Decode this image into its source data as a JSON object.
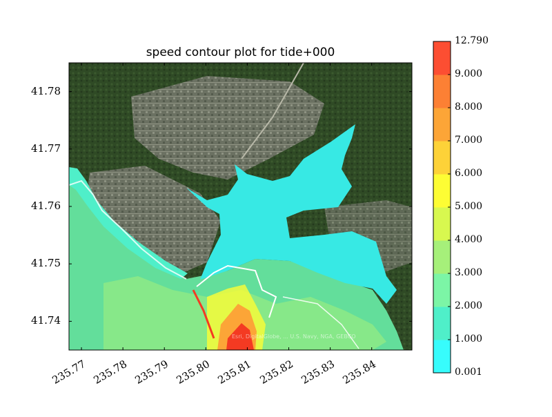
{
  "chart_data": {
    "type": "heatmap",
    "title": "speed contour plot for tide+000",
    "xlabel": "",
    "ylabel": "",
    "xlim": [
      235.767,
      235.8497
    ],
    "ylim": [
      41.735,
      41.785
    ],
    "x_ticks": [
      "235.77",
      "235.78",
      "235.79",
      "235.80",
      "235.81",
      "235.82",
      "235.83",
      "235.84"
    ],
    "y_ticks": [
      "41.78",
      "41.77",
      "41.76",
      "41.75",
      "41.74"
    ],
    "colorbar": {
      "levels": [
        0.001,
        1.0,
        2.0,
        3.0,
        4.0,
        5.0,
        6.0,
        7.0,
        8.0,
        9.0,
        12.79
      ],
      "tick_labels": [
        "12.790",
        "9.000",
        "8.000",
        "7.000",
        "6.000",
        "5.000",
        "4.000",
        "3.000",
        "2.000",
        "1.000",
        "0.001"
      ],
      "colors": [
        "#37fcfc",
        "#4fefc9",
        "#7cf5a6",
        "#a6f07a",
        "#d8f84f",
        "#fdfd34",
        "#fdd238",
        "#fca537",
        "#fc8034",
        "#fc4e32"
      ]
    },
    "background": "satellite imagery",
    "attribution": "Esri, DigitalGlobe, ... U.S. Navy, NGA, GEBCO"
  },
  "colors": {
    "forest": "#2f4a25",
    "urban": "#6e7566",
    "ocean_speed": "#63de9b",
    "channel_speed": "#37e9e4",
    "edge_outline": "#ffffff",
    "high_speed": "#f43a22"
  }
}
